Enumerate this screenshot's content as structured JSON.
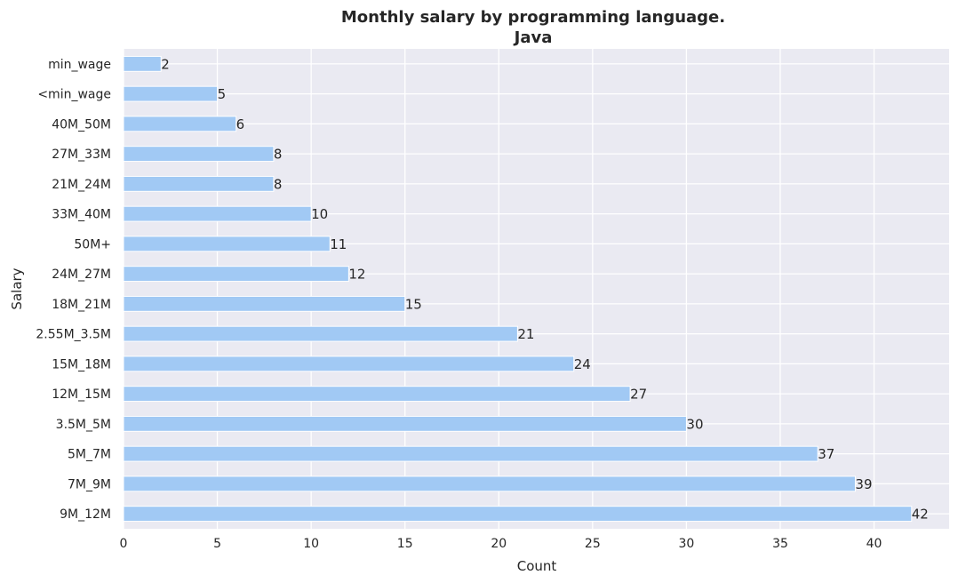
{
  "chart_data": {
    "type": "bar",
    "orientation": "horizontal",
    "title_line1": "Monthly salary by programming language.",
    "title_line2": "Java",
    "xlabel": "Count",
    "ylabel": "Salary",
    "xlim": [
      0,
      44
    ],
    "xticks": [
      "0",
      "5",
      "10",
      "15",
      "20",
      "25",
      "30",
      "35",
      "40"
    ],
    "grid": true,
    "categories": [
      "min_wage",
      "<min_wage",
      "40M_50M",
      "27M_33M",
      "21M_24M",
      "33M_40M",
      "50M+",
      "24M_27M",
      "18M_21M",
      "2.55M_3.5M",
      "15M_18M",
      "12M_15M",
      "3.5M_5M",
      "5M_7M",
      "7M_9M",
      "9M_12M"
    ],
    "values": [
      2,
      5,
      6,
      8,
      8,
      10,
      11,
      12,
      15,
      21,
      24,
      27,
      30,
      37,
      39,
      42
    ],
    "value_labels": [
      "2",
      "5",
      "6",
      "8",
      "8",
      "10",
      "11",
      "12",
      "15",
      "21",
      "24",
      "27",
      "30",
      "37",
      "39",
      "42"
    ],
    "colors": {
      "bar": "#a1c9f4",
      "background": "#eaeaf2",
      "grid": "#ffffff",
      "text": "#262626"
    }
  }
}
